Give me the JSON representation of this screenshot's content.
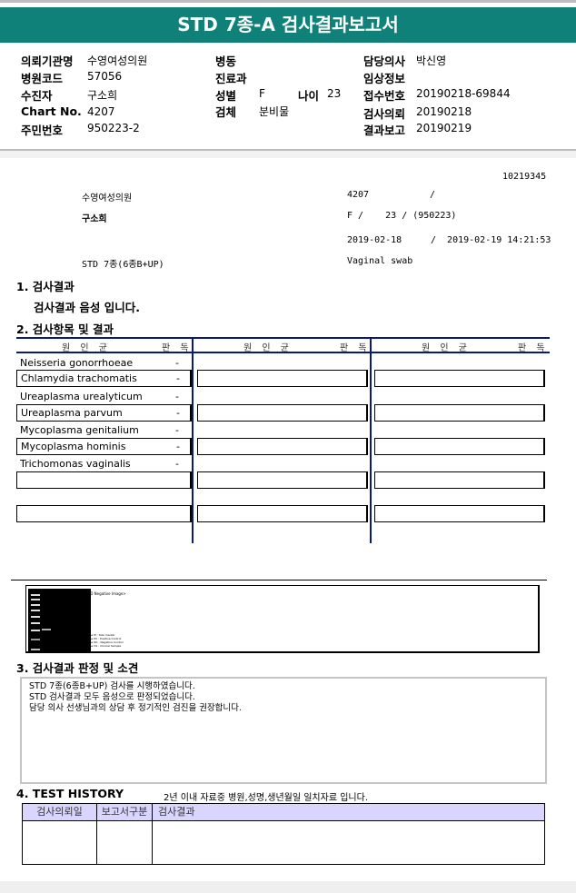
{
  "title": "STD 7종-A 검사결과보고서",
  "info": {
    "institution_label": "의뢰기관명",
    "institution": "수영여성의원",
    "hospital_code_label": "병원코드",
    "hospital_code": "57056",
    "patient_label": "수진자",
    "patient": "구소희",
    "chart_label": "Chart No.",
    "chart": "4207",
    "resident_label": "주민번호",
    "resident": "950223-2",
    "ward_label": "병동",
    "ward": "",
    "dept_label": "진료과",
    "dept": "",
    "sex_label": "성별",
    "sex": "F",
    "age_label": "나이",
    "age": "23",
    "specimen_label": "검체",
    "specimen": "분비물",
    "doctor_label": "담당의사",
    "doctor": "박신영",
    "clinical_label": "임상정보",
    "clinical": "",
    "receipt_label": "접수번호",
    "receipt": "20190218-69844",
    "request_label": "검사의뢰",
    "request": "20190218",
    "report_label": "결과보고",
    "report": "20190219"
  },
  "print": {
    "id": "10219345",
    "institution": "수영여성의원",
    "chart": "4207",
    "chart_sep": "/",
    "patient": "구소희",
    "demo": "F /    23 / (950223)",
    "date_request": "2019-02-18",
    "date_report": "/  2019-02-19 14:21:53",
    "test": "STD 7종(6종B+UP)",
    "specimen": "Vaginal swab"
  },
  "section1": {
    "title": "1. 검사결과",
    "summary": "검사결과 음성 입니다."
  },
  "section2": {
    "title": "2. 검사항목 및 결과",
    "col_pathogen": "원 인 균",
    "col_result": "판 독",
    "rows": [
      {
        "name": "Neisseria gonorrhoeae",
        "result": "-"
      },
      {
        "name": "Chlamydia trachomatis",
        "result": "-"
      },
      {
        "name": "Ureaplasma urealyticum",
        "result": "-"
      },
      {
        "name": "Ureaplasma parvum",
        "result": "-"
      },
      {
        "name": "Mycoplasma genitalium",
        "result": "-"
      },
      {
        "name": "Mycoplasma hominis",
        "result": "-"
      },
      {
        "name": "Trichomonas vaginalis",
        "result": "-"
      }
    ]
  },
  "gel": {
    "caption": "<STD Negative Image>",
    "legend": [
      "Lane M : Size marker",
      "Lane PC : Positive Control",
      "Lane NC : Negative Control",
      "Lane CS : Clinical Sample"
    ]
  },
  "section3": {
    "title": "3. 검사결과 판정 및 소견",
    "lines": [
      "STD 7종(6종B+UP) 검사를 시행하였습니다.",
      "STD 검사결과 모두 음성으로 판정되었습니다.",
      "담당 의사 선생님과의 상담 후 정기적인 검진을 권장합니다."
    ]
  },
  "section4": {
    "title": "4. TEST HISTORY",
    "note": "2년 이내 자료중 병원,성명,생년월일 일치자료 입니다.",
    "headers": [
      "검사의뢰일",
      "보고서구분",
      "검사결과"
    ]
  },
  "colors": {
    "header_band": "#0f8178",
    "table_rule": "#0b1a7a",
    "history_header": "#d9d5fd"
  }
}
